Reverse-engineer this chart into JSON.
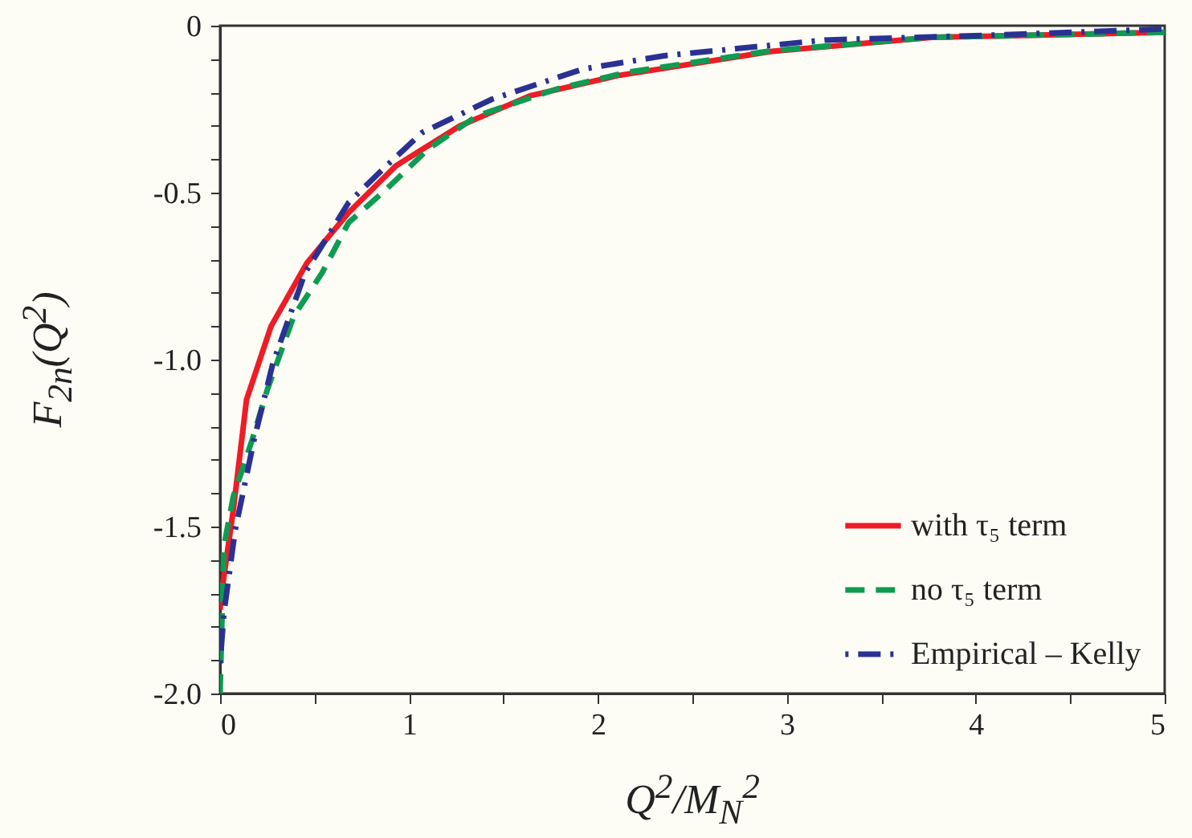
{
  "chart_data": {
    "type": "line",
    "xlabel": "Q$^{2}$/M$_{N}$$^{2}$",
    "ylabel": "F$_{2n}$(Q$^{2}$)",
    "xlim": [
      0,
      5
    ],
    "ylim": [
      -2,
      0
    ],
    "xticks": [
      0,
      {
        "value": 0.5,
        "label": null
      },
      1,
      {
        "value": 1.5,
        "label": null
      },
      2,
      {
        "value": 2.5,
        "label": null
      },
      3,
      {
        "value": 3.5,
        "label": null
      },
      4,
      {
        "value": 4.5,
        "label": null
      },
      5
    ],
    "yticks": [
      {
        "value": -2,
        "label": "-2.0"
      },
      {
        "value": -1.9,
        "label": null
      },
      {
        "value": -1.8,
        "label": null
      },
      {
        "value": -1.7,
        "label": null
      },
      {
        "value": -1.6,
        "label": null
      },
      {
        "value": -1.5,
        "label": "-1.5"
      },
      {
        "value": -1.4,
        "label": null
      },
      {
        "value": -1.3,
        "label": null
      },
      {
        "value": -1.2,
        "label": null
      },
      {
        "value": -1.1,
        "label": null
      },
      {
        "value": -1,
        "label": "-1.0"
      },
      {
        "value": -0.9,
        "label": null
      },
      {
        "value": -0.8,
        "label": null
      },
      {
        "value": -0.7,
        "label": null
      },
      {
        "value": -0.6,
        "label": null
      },
      {
        "value": -0.5,
        "label": "-0.5"
      },
      {
        "value": -0.4,
        "label": null
      },
      {
        "value": -0.3,
        "label": null
      },
      {
        "value": -0.2,
        "label": null
      },
      {
        "value": -0.1,
        "label": null
      },
      0
    ],
    "grid": false,
    "legend": "bottom right",
    "marker": "none",
    "series": [
      {
        "name": "with τ₅ term",
        "color": "#ee1c25",
        "line_style": "solid",
        "x": [
          0,
          0.003,
          0.07,
          0.14,
          0.27,
          0.46,
          0.68,
          0.93,
          1.27,
          1.64,
          2.1,
          2.92,
          3.77,
          5
        ],
        "values": [
          -1.75,
          -1.72,
          -1.45,
          -1.12,
          -0.9,
          -0.71,
          -0.56,
          -0.42,
          -0.3,
          -0.21,
          -0.15,
          -0.077,
          -0.035,
          -0.02
        ]
      },
      {
        "name": "no τ₅ term",
        "color": "#0f9b52",
        "line_style": "dashed",
        "x": [
          0,
          0.02,
          0.07,
          0.17,
          0.25,
          0.39,
          0.54,
          0.68,
          0.88,
          1.1,
          1.36,
          1.78,
          2.15,
          2.92,
          3.77,
          5
        ],
        "values": [
          -2,
          -1.56,
          -1.41,
          -1.24,
          -1.09,
          -0.87,
          -0.74,
          -0.59,
          -0.49,
          -0.37,
          -0.27,
          -0.19,
          -0.14,
          -0.075,
          -0.035,
          -0.02
        ]
      },
      {
        "name": "Empirical – Kelly",
        "color": "#2b3193",
        "line_style": "dashdot",
        "x": [
          0,
          0.02,
          0.08,
          0.18,
          0.28,
          0.45,
          0.68,
          0.88,
          1.07,
          1.44,
          1.92,
          2.35,
          3.2,
          4.05,
          5
        ],
        "values": [
          -1.91,
          -1.76,
          -1.51,
          -1.24,
          -1.01,
          -0.74,
          -0.53,
          -0.42,
          -0.32,
          -0.22,
          -0.13,
          -0.09,
          -0.043,
          -0.029,
          -0.01
        ]
      }
    ]
  }
}
